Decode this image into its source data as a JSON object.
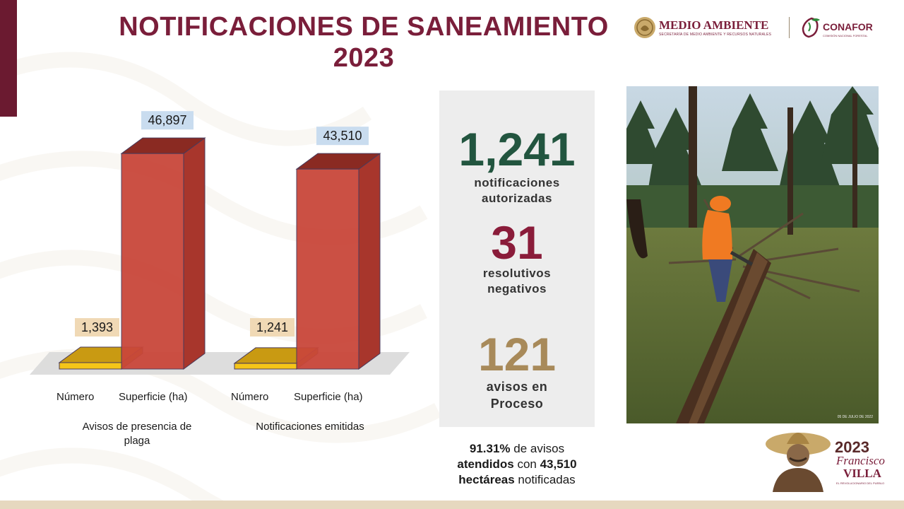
{
  "title": {
    "line1": "NOTIFICACIONES DE SANEAMIENTO",
    "line2": "2023"
  },
  "logos": {
    "medio_ambiente": "MEDIO AMBIENTE",
    "medio_ambiente_sub": "SECRETARÍA DE MEDIO AMBIENTE Y RECURSOS NATURALES",
    "conafor": "CONAFOR",
    "conafor_sub": "COMISIÓN NACIONAL FORESTAL"
  },
  "chart_data": {
    "type": "bar",
    "categories": [
      "Número",
      "Superficie (ha)"
    ],
    "groups": [
      {
        "name": "Avisos de presencia de plaga",
        "values": [
          1393,
          46897
        ],
        "labels": [
          "1,393",
          "46,897"
        ]
      },
      {
        "name": "Notificaciones emitidas",
        "values": [
          1241,
          43510
        ],
        "labels": [
          "1,241",
          "43,510"
        ]
      }
    ],
    "colors": {
      "numero": "#f5c518",
      "superficie": "#c9473a",
      "numero_label_bg": "#f0d9b5",
      "superficie_label_bg": "#c9dcef"
    },
    "ylim": [
      0,
      50000
    ]
  },
  "captions": {
    "group1_line1": "Avisos de presencia de",
    "group1_line2": "plaga",
    "group2": "Notificaciones emitidas"
  },
  "stats": [
    {
      "value": "1,241",
      "label_line1": "notificaciones",
      "label_line2": "autorizadas",
      "color": "#22553f"
    },
    {
      "value": "31",
      "label_line1": "resolutivos",
      "label_line2": "negativos",
      "color": "#8a1c3a"
    },
    {
      "value": "121",
      "label_line1": "avisos en",
      "label_line2": "Proceso",
      "color": "#a88a5a"
    }
  ],
  "summary": {
    "pct": "91.31%",
    "text1": " de avisos",
    "bold1": "atendidos",
    "text2": " con ",
    "bold2": "43,510",
    "bold3": "hectáreas",
    "text3": " notificadas"
  },
  "photo": {
    "stamp": "05 DE JULIO DE 2022"
  },
  "anniversary": {
    "year": "2023",
    "name1": "Francisco",
    "name2": "VILLA",
    "subtitle": "EL REVOLUCIONARIO DEL PUEBLO"
  }
}
